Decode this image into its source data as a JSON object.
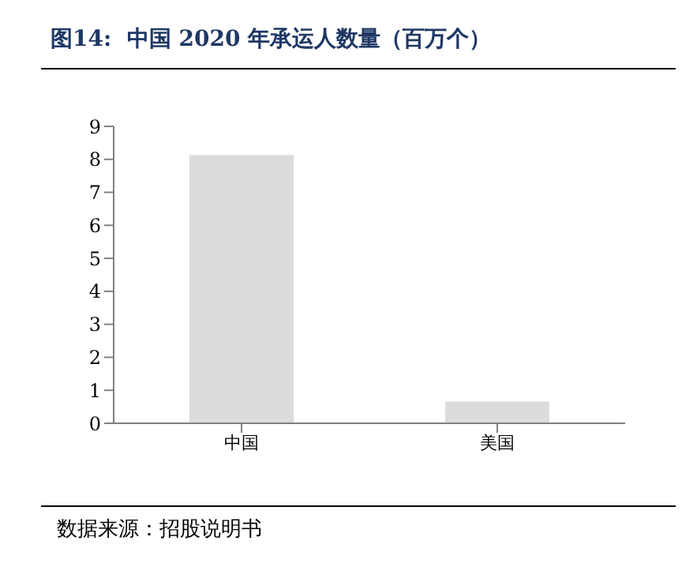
{
  "chart_data": {
    "type": "bar",
    "title": "图14:  中国 2020 年承运人数量（百万个）",
    "categories": [
      "中国",
      "美国"
    ],
    "values": [
      8.13,
      0.66
    ],
    "color": "#dcdcdc",
    "ylim": [
      0,
      9
    ],
    "yticks": [
      0,
      1,
      2,
      3,
      4,
      5,
      6,
      7,
      8,
      9
    ],
    "grid": false,
    "annotations": [
      "数据来源：招股说明书"
    ]
  }
}
